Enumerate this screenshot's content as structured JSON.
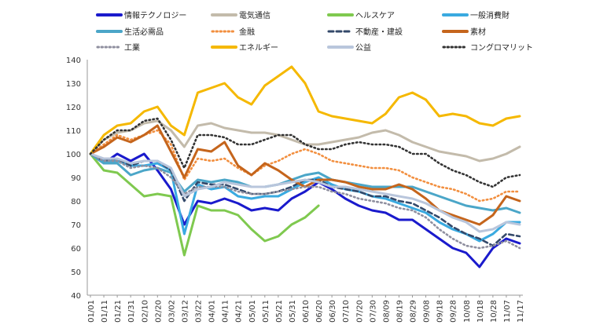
{
  "chart_data": {
    "type": "line",
    "title": "",
    "xlabel": "",
    "ylabel": "",
    "ylim": [
      40,
      140
    ],
    "yticks": [
      40,
      50,
      60,
      70,
      80,
      90,
      100,
      110,
      120,
      130,
      140
    ],
    "grid": false,
    "legend_position": "top",
    "x": [
      "01/01",
      "01/11",
      "01/21",
      "01/31",
      "02/10",
      "02/20",
      "03/02",
      "03/12",
      "03/22",
      "04/01",
      "04/11",
      "04/21",
      "05/01",
      "05/11",
      "05/21",
      "05/31",
      "06/10",
      "06/20",
      "06/30",
      "07/10",
      "07/20",
      "07/30",
      "08/09",
      "08/19",
      "08/29",
      "09/08",
      "09/18",
      "09/28",
      "10/08",
      "10/18",
      "10/28",
      "11/07",
      "11/17"
    ],
    "series": [
      {
        "name": "情報テクノロジー",
        "color": "#1a1acc",
        "style": "solid",
        "values": [
          100,
          96,
          100,
          97,
          100,
          93,
          85,
          70,
          80,
          79,
          81,
          79,
          76,
          77,
          76,
          81,
          84,
          88,
          85,
          81,
          78,
          76,
          75,
          72,
          72,
          68,
          64,
          60,
          58,
          52,
          60,
          64,
          62
        ]
      },
      {
        "name": "電気通信",
        "color": "#c3bbab",
        "style": "solid",
        "values": [
          100,
          106,
          109,
          110,
          113,
          114,
          110,
          103,
          112,
          113,
          111,
          110,
          109,
          109,
          108,
          106,
          104,
          104,
          105,
          106,
          107,
          109,
          110,
          108,
          105,
          103,
          101,
          100,
          99,
          97,
          98,
          100,
          103
        ]
      },
      {
        "name": "ヘルスケア",
        "color": "#7fc94f",
        "style": "solid",
        "values": [
          100,
          93,
          92,
          87,
          82,
          83,
          82,
          57,
          78,
          76,
          76,
          74,
          68,
          63,
          65,
          70,
          73,
          78,
          null,
          null,
          null,
          null,
          null,
          null,
          null,
          null,
          null,
          null,
          null,
          null,
          null,
          null,
          null
        ]
      },
      {
        "name": "一般消費財",
        "color": "#3aaae0",
        "style": "solid",
        "values": [
          100,
          97,
          97,
          95,
          95,
          96,
          93,
          66,
          87,
          85,
          86,
          82,
          81,
          82,
          82,
          85,
          88,
          90,
          87,
          85,
          84,
          82,
          81,
          79,
          77,
          75,
          71,
          68,
          66,
          63,
          66,
          71,
          71
        ]
      },
      {
        "name": "生活必需品",
        "color": "#4ba6c8",
        "style": "solid",
        "values": [
          100,
          96,
          96,
          91,
          93,
          94,
          92,
          84,
          89,
          88,
          89,
          88,
          86,
          86,
          87,
          89,
          91,
          92,
          89,
          88,
          87,
          86,
          86,
          86,
          86,
          84,
          82,
          80,
          78,
          77,
          76,
          77,
          75
        ]
      },
      {
        "name": "金融",
        "color": "#f28f3f",
        "style": "dotted",
        "values": [
          100,
          104,
          108,
          106,
          108,
          110,
          104,
          89,
          98,
          97,
          98,
          94,
          91,
          95,
          97,
          100,
          102,
          100,
          97,
          96,
          95,
          94,
          94,
          93,
          90,
          88,
          86,
          85,
          83,
          80,
          81,
          84,
          84
        ]
      },
      {
        "name": "不動産・建設",
        "color": "#34496a",
        "style": "dashed",
        "values": [
          100,
          97,
          98,
          95,
          97,
          97,
          93,
          80,
          88,
          87,
          87,
          85,
          83,
          83,
          84,
          86,
          89,
          89,
          86,
          85,
          84,
          82,
          82,
          80,
          79,
          76,
          73,
          69,
          66,
          64,
          61,
          66,
          65
        ]
      },
      {
        "name": "素材",
        "color": "#c5651c",
        "style": "solid",
        "values": [
          100,
          103,
          107,
          105,
          108,
          112,
          101,
          90,
          102,
          101,
          105,
          95,
          91,
          96,
          93,
          89,
          86,
          89,
          89,
          88,
          86,
          85,
          85,
          87,
          85,
          81,
          76,
          74,
          72,
          70,
          74,
          82,
          80
        ]
      },
      {
        "name": "工業",
        "color": "#8f8f9f",
        "style": "dotted",
        "values": [
          100,
          97,
          97,
          94,
          95,
          94,
          90,
          83,
          86,
          86,
          86,
          84,
          83,
          83,
          84,
          85,
          86,
          86,
          84,
          83,
          81,
          80,
          79,
          77,
          76,
          73,
          68,
          64,
          61,
          60,
          61,
          63,
          60
        ]
      },
      {
        "name": "エネルギー",
        "color": "#f5b800",
        "style": "solid",
        "values": [
          100,
          108,
          112,
          113,
          118,
          120,
          112,
          108,
          126,
          128,
          130,
          124,
          121,
          129,
          133,
          137,
          130,
          118,
          116,
          115,
          114,
          113,
          117,
          124,
          126,
          123,
          116,
          117,
          116,
          113,
          112,
          115,
          116
        ]
      },
      {
        "name": "公益",
        "color": "#b9c6dc",
        "style": "solid",
        "values": [
          100,
          98,
          98,
          96,
          97,
          97,
          94,
          82,
          85,
          86,
          88,
          87,
          86,
          86,
          87,
          88,
          89,
          88,
          86,
          86,
          85,
          84,
          83,
          82,
          81,
          79,
          76,
          73,
          71,
          67,
          68,
          71,
          70
        ]
      },
      {
        "name": "コングロマリット",
        "color": "#333333",
        "style": "dotted",
        "values": [
          100,
          106,
          110,
          110,
          114,
          115,
          106,
          94,
          108,
          108,
          107,
          104,
          104,
          106,
          108,
          108,
          104,
          102,
          102,
          104,
          105,
          104,
          104,
          103,
          100,
          100,
          96,
          93,
          91,
          88,
          86,
          90,
          91
        ]
      }
    ]
  }
}
